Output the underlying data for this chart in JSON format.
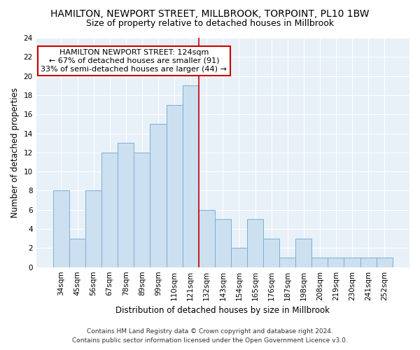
{
  "title": "HAMILTON, NEWPORT STREET, MILLBROOK, TORPOINT, PL10 1BW",
  "subtitle": "Size of property relative to detached houses in Millbrook",
  "xlabel": "Distribution of detached houses by size in Millbrook",
  "ylabel": "Number of detached properties",
  "bar_labels": [
    "34sqm",
    "45sqm",
    "56sqm",
    "67sqm",
    "78sqm",
    "89sqm",
    "99sqm",
    "110sqm",
    "121sqm",
    "132sqm",
    "143sqm",
    "154sqm",
    "165sqm",
    "176sqm",
    "187sqm",
    "198sqm",
    "208sqm",
    "219sqm",
    "230sqm",
    "241sqm",
    "252sqm"
  ],
  "bar_values": [
    8,
    3,
    8,
    12,
    13,
    12,
    15,
    17,
    19,
    6,
    5,
    2,
    5,
    3,
    1,
    3,
    1,
    1,
    1,
    1,
    1
  ],
  "bar_color": "#cce0f0",
  "bar_edge_color": "#7ab0d4",
  "vline_x_index": 8,
  "vline_color": "#cc0000",
  "annotation_title": "HAMILTON NEWPORT STREET: 124sqm",
  "annotation_line1": "← 67% of detached houses are smaller (91)",
  "annotation_line2": "33% of semi-detached houses are larger (44) →",
  "annotation_box_color": "#ffffff",
  "annotation_box_edge": "#cc0000",
  "ylim": [
    0,
    24
  ],
  "yticks": [
    0,
    2,
    4,
    6,
    8,
    10,
    12,
    14,
    16,
    18,
    20,
    22,
    24
  ],
  "footer1": "Contains HM Land Registry data © Crown copyright and database right 2024.",
  "footer2": "Contains public sector information licensed under the Open Government Licence v3.0.",
  "bg_color": "#ffffff",
  "plot_bg_color": "#e8f0f8",
  "title_fontsize": 10,
  "subtitle_fontsize": 9,
  "axis_label_fontsize": 8.5,
  "tick_fontsize": 7.5,
  "annotation_fontsize": 8,
  "footer_fontsize": 6.5
}
